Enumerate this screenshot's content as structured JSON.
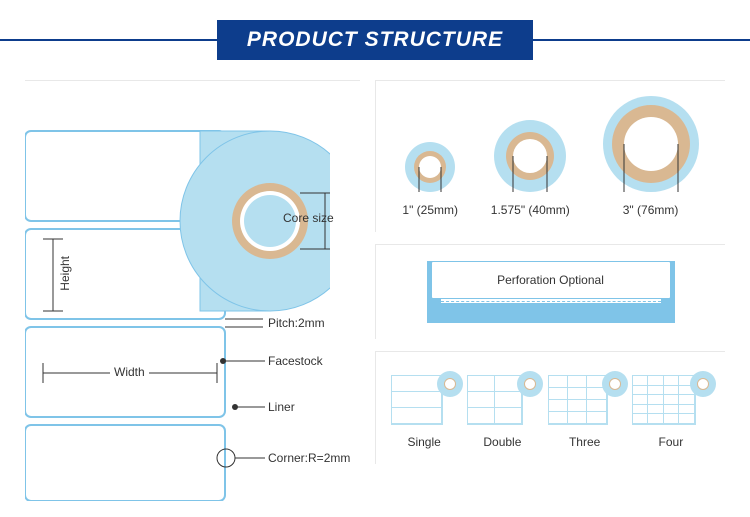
{
  "header": {
    "title": "PRODUCT STRUCTURE"
  },
  "main_diagram": {
    "annotations": {
      "core_size": "Core size",
      "height": "Height",
      "pitch": "Pitch:2mm",
      "facestock": "Facestock",
      "width": "Width",
      "liner": "Liner",
      "corner": "Corner:R=2mm"
    },
    "colors": {
      "roll_fill": "#b5dff0",
      "roll_stroke": "#7fc4e8",
      "core_ring": "#d9b892",
      "line": "#333333"
    }
  },
  "cores": [
    {
      "label": "1\" (25mm)",
      "outer_d": 50,
      "inner_d": 22
    },
    {
      "label": "1.575\" (40mm)",
      "outer_d": 72,
      "inner_d": 34
    },
    {
      "label": "3\" (76mm)",
      "outer_d": 96,
      "inner_d": 54
    }
  ],
  "perforation": {
    "label": "Perforation Optional"
  },
  "columns": [
    {
      "label": "Single",
      "cols": 1,
      "rows": 3
    },
    {
      "label": "Double",
      "cols": 2,
      "rows": 3
    },
    {
      "label": "Three",
      "cols": 3,
      "rows": 4
    },
    {
      "label": "Four",
      "cols": 4,
      "rows": 5
    }
  ]
}
